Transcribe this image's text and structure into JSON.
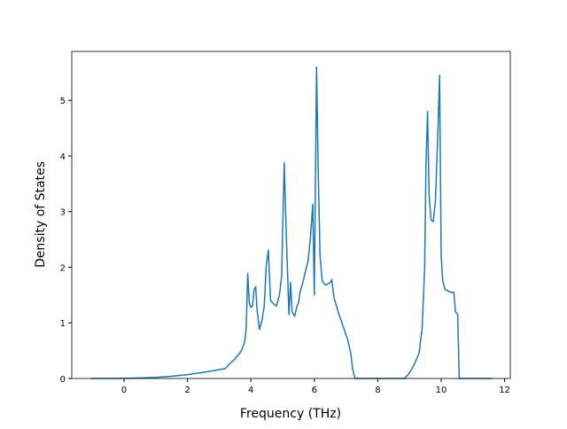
{
  "chart_data": {
    "type": "line",
    "xlabel": "Frequency (THz)",
    "ylabel": "Density of States",
    "xlim": [
      -1.65,
      12.18
    ],
    "ylim": [
      0,
      5.88
    ],
    "xticks": [
      0,
      2,
      4,
      6,
      8,
      10,
      12
    ],
    "yticks": [
      0,
      1,
      2,
      3,
      4,
      5
    ],
    "grid": false,
    "series": [
      {
        "color": "#1f77b4",
        "x": [
          -1.05,
          -0.5,
          0,
          0.5,
          1,
          1.5,
          2,
          2.5,
          3,
          3.2,
          3.3,
          3.5,
          3.7,
          3.8,
          3.85,
          3.9,
          3.95,
          4.0,
          4.05,
          4.1,
          4.15,
          4.2,
          4.27,
          4.35,
          4.42,
          4.48,
          4.55,
          4.62,
          4.7,
          4.8,
          4.9,
          4.97,
          5.05,
          5.12,
          5.2,
          5.25,
          5.3,
          5.38,
          5.45,
          5.5,
          5.55,
          5.65,
          5.75,
          5.8,
          5.88,
          5.95,
          6.0,
          6.07,
          6.12,
          6.18,
          6.25,
          6.35,
          6.5,
          6.55,
          6.62,
          6.75,
          6.9,
          7.05,
          7.15,
          7.2,
          7.28,
          8.85,
          9.0,
          9.15,
          9.3,
          9.4,
          9.48,
          9.52,
          9.57,
          9.62,
          9.68,
          9.75,
          9.82,
          9.9,
          9.95,
          10.0,
          10.05,
          10.12,
          10.3,
          10.4,
          10.45,
          10.52,
          10.57,
          11.6
        ],
        "values": [
          0,
          0,
          0.002,
          0.01,
          0.02,
          0.04,
          0.07,
          0.11,
          0.16,
          0.18,
          0.25,
          0.35,
          0.5,
          0.65,
          0.9,
          1.89,
          1.35,
          1.28,
          1.3,
          1.6,
          1.65,
          1.2,
          0.88,
          1.05,
          1.3,
          2.0,
          2.31,
          1.4,
          1.35,
          1.3,
          1.5,
          1.85,
          3.88,
          2.5,
          1.15,
          1.73,
          1.2,
          1.12,
          1.3,
          1.35,
          1.55,
          1.75,
          2.0,
          2.1,
          2.55,
          3.13,
          1.5,
          5.6,
          3.8,
          2.2,
          1.75,
          1.68,
          1.72,
          1.78,
          1.45,
          1.2,
          0.95,
          0.7,
          0.45,
          0.2,
          0,
          0,
          0.1,
          0.25,
          0.45,
          0.9,
          2.0,
          3.8,
          4.8,
          3.3,
          2.85,
          2.82,
          3.2,
          4.5,
          5.45,
          2.2,
          1.75,
          1.6,
          1.55,
          1.55,
          1.2,
          1.15,
          0,
          0
        ]
      }
    ]
  }
}
